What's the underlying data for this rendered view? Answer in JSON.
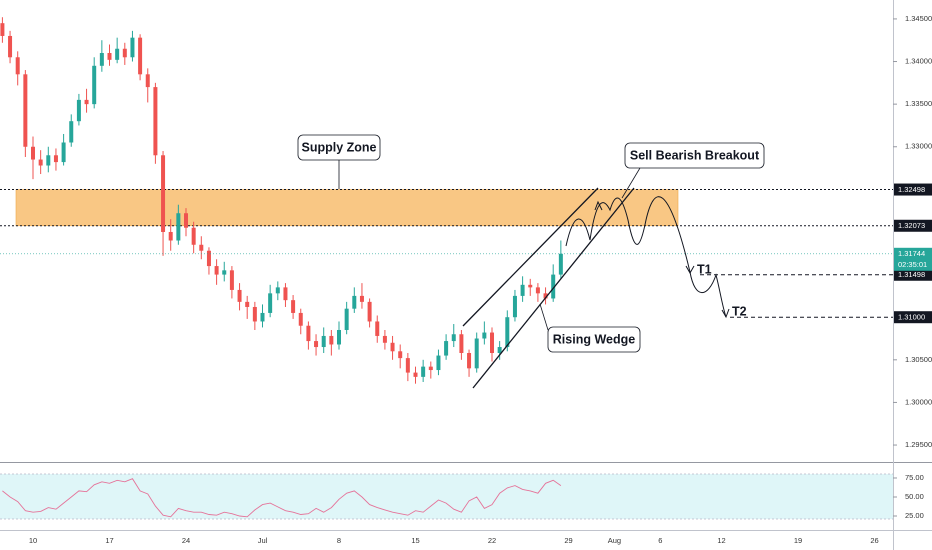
{
  "chart_data": [
    {
      "type": "candlestick",
      "x": [
        -4,
        -3,
        -2,
        -1,
        0,
        1,
        2,
        3,
        4,
        5,
        6,
        7,
        8,
        9,
        10,
        11,
        12,
        13,
        14,
        15,
        16,
        17,
        18,
        19,
        20,
        21,
        22,
        23,
        24,
        25,
        26,
        27,
        28,
        29,
        30,
        31,
        32,
        33,
        34,
        35,
        36,
        37,
        38,
        39,
        40,
        41,
        42,
        43,
        44,
        45,
        46,
        47,
        48,
        49,
        50,
        51,
        52,
        53,
        54,
        55,
        56,
        57,
        58,
        59,
        60,
        61,
        62,
        63,
        64,
        65,
        66,
        67,
        68,
        69
      ],
      "open": [
        1.3445,
        1.343,
        1.3405,
        1.3385,
        1.33,
        1.3285,
        1.3278,
        1.329,
        1.3282,
        1.3305,
        1.333,
        1.3355,
        1.335,
        1.3395,
        1.341,
        1.3402,
        1.3415,
        1.3405,
        1.3428,
        1.3385,
        1.337,
        1.329,
        1.32,
        1.319,
        1.3222,
        1.3205,
        1.3185,
        1.3178,
        1.316,
        1.315,
        1.3155,
        1.3132,
        1.3118,
        1.3112,
        1.3095,
        1.3105,
        1.3128,
        1.3135,
        1.312,
        1.3105,
        1.309,
        1.3072,
        1.3065,
        1.3078,
        1.3068,
        1.3085,
        1.311,
        1.3125,
        1.3118,
        1.3095,
        1.3078,
        1.307,
        1.306,
        1.3052,
        1.3035,
        1.303,
        1.3042,
        1.3038,
        1.3055,
        1.3072,
        1.308,
        1.3058,
        1.304,
        1.3075,
        1.3082,
        1.3058,
        1.3065,
        1.31,
        1.3125,
        1.3138,
        1.3135,
        1.3128,
        1.3122,
        1.315
      ],
      "high": [
        1.3452,
        1.3436,
        1.3412,
        1.339,
        1.3312,
        1.3296,
        1.33,
        1.3298,
        1.3315,
        1.3338,
        1.3362,
        1.3368,
        1.3405,
        1.3425,
        1.342,
        1.3428,
        1.3422,
        1.3436,
        1.3432,
        1.3392,
        1.3375,
        1.3295,
        1.3215,
        1.3232,
        1.3228,
        1.3212,
        1.3195,
        1.3182,
        1.3168,
        1.3165,
        1.316,
        1.314,
        1.3125,
        1.3118,
        1.3115,
        1.3138,
        1.3142,
        1.314,
        1.3126,
        1.311,
        1.3095,
        1.308,
        1.3088,
        1.3085,
        1.3095,
        1.3118,
        1.3135,
        1.314,
        1.3122,
        1.3102,
        1.3085,
        1.3078,
        1.3068,
        1.3058,
        1.3042,
        1.305,
        1.3048,
        1.3062,
        1.308,
        1.3092,
        1.3085,
        1.3062,
        1.3082,
        1.3095,
        1.3088,
        1.3072,
        1.3108,
        1.3132,
        1.3148,
        1.3145,
        1.314,
        1.3135,
        1.3162,
        1.319
      ],
      "low": [
        1.3422,
        1.3398,
        1.3372,
        1.3288,
        1.3262,
        1.3268,
        1.327,
        1.3272,
        1.3278,
        1.33,
        1.3325,
        1.334,
        1.3345,
        1.3388,
        1.3395,
        1.3398,
        1.3396,
        1.34,
        1.3378,
        1.3352,
        1.328,
        1.3172,
        1.3178,
        1.3185,
        1.3195,
        1.3175,
        1.3168,
        1.315,
        1.3138,
        1.3142,
        1.3122,
        1.3108,
        1.3098,
        1.3085,
        1.3088,
        1.31,
        1.312,
        1.3112,
        1.3098,
        1.308,
        1.3062,
        1.3055,
        1.3058,
        1.3055,
        1.3062,
        1.308,
        1.3105,
        1.311,
        1.3088,
        1.307,
        1.3062,
        1.305,
        1.304,
        1.3025,
        1.3022,
        1.3024,
        1.3028,
        1.3032,
        1.305,
        1.3065,
        1.305,
        1.303,
        1.3035,
        1.3068,
        1.3048,
        1.305,
        1.306,
        1.3095,
        1.3118,
        1.3125,
        1.3118,
        1.3115,
        1.3118,
        1.3145
      ],
      "close": [
        1.343,
        1.3405,
        1.3385,
        1.33,
        1.3285,
        1.3278,
        1.329,
        1.3282,
        1.3305,
        1.333,
        1.3355,
        1.335,
        1.3395,
        1.341,
        1.3402,
        1.3415,
        1.3405,
        1.3428,
        1.3385,
        1.337,
        1.329,
        1.32,
        1.319,
        1.3222,
        1.3205,
        1.3185,
        1.3178,
        1.316,
        1.315,
        1.3155,
        1.3132,
        1.3118,
        1.3112,
        1.3095,
        1.3105,
        1.3128,
        1.3135,
        1.312,
        1.3105,
        1.309,
        1.3072,
        1.3065,
        1.3078,
        1.3068,
        1.3085,
        1.311,
        1.3125,
        1.3118,
        1.3095,
        1.3078,
        1.307,
        1.306,
        1.3052,
        1.3035,
        1.303,
        1.3042,
        1.3038,
        1.3055,
        1.3072,
        1.308,
        1.3058,
        1.304,
        1.3075,
        1.3082,
        1.3058,
        1.3065,
        1.31,
        1.3125,
        1.3138,
        1.3135,
        1.3128,
        1.3122,
        1.315,
        1.31744
      ],
      "up_color": "#26a69a",
      "down_color": "#ef5350",
      "zone_color": "#f9c784",
      "xlim": [
        -4.314,
        112.418
      ],
      "xticks": [
        {
          "value": 0,
          "label": "10"
        },
        {
          "value": 10,
          "label": "17"
        },
        {
          "value": 20,
          "label": "24"
        },
        {
          "value": 30,
          "label": "Jul"
        },
        {
          "value": 40,
          "label": "8"
        },
        {
          "value": 50,
          "label": "15"
        },
        {
          "value": 60,
          "label": "22"
        },
        {
          "value": 70,
          "label": "29"
        },
        {
          "value": 76,
          "label": "Aug"
        },
        {
          "value": 82,
          "label": "6"
        },
        {
          "value": 90,
          "label": "12"
        },
        {
          "value": 100,
          "label": "19"
        },
        {
          "value": 110,
          "label": "26"
        }
      ],
      "ylim": [
        1.29301,
        1.34722
      ],
      "yticks": [
        {
          "value": 1.345,
          "label": "1.34500"
        },
        {
          "value": 1.34,
          "label": "1.34000"
        },
        {
          "value": 1.335,
          "label": "1.33500"
        },
        {
          "value": 1.33,
          "label": "1.33000"
        },
        {
          "value": 1.305,
          "label": "1.30500"
        },
        {
          "value": 1.3,
          "label": "1.30000"
        },
        {
          "value": 1.295,
          "label": "1.29500"
        }
      ],
      "levels": [
        1.32498,
        1.32073,
        1.31498,
        {
          "value": 1.31,
          "label": "1.31000"
        }
      ],
      "countdown": "02:35:01",
      "annotations": [
        "Supply Zone",
        "Sell Bearish Breakout",
        "Rising Wedge",
        "T1",
        "T2"
      ]
    },
    {
      "type": "line",
      "x": [
        -4,
        -3,
        -2,
        -1,
        0,
        1,
        2,
        3,
        4,
        5,
        6,
        7,
        8,
        9,
        10,
        11,
        12,
        13,
        14,
        15,
        16,
        17,
        18,
        19,
        20,
        21,
        22,
        23,
        24,
        25,
        26,
        27,
        28,
        29,
        30,
        31,
        32,
        33,
        34,
        35,
        36,
        37,
        38,
        39,
        40,
        41,
        42,
        43,
        44,
        45,
        46,
        47,
        48,
        49,
        50,
        51,
        52,
        53,
        54,
        55,
        56,
        57,
        58,
        59,
        60,
        61,
        62,
        63,
        64,
        65,
        66,
        67,
        68,
        69
      ],
      "values": [
        58,
        50,
        44,
        32,
        30,
        31,
        36,
        34,
        42,
        50,
        58,
        57,
        66,
        70,
        68,
        72,
        70,
        74,
        58,
        54,
        38,
        26,
        24,
        35,
        32,
        30,
        30,
        27,
        26,
        30,
        28,
        25,
        24,
        33,
        40,
        42,
        37,
        32,
        30,
        27,
        28,
        35,
        30,
        36,
        47,
        55,
        58,
        50,
        40,
        36,
        33,
        30,
        28,
        26,
        32,
        30,
        38,
        46,
        42,
        34,
        30,
        45,
        50,
        35,
        40,
        55,
        62,
        65,
        60,
        58,
        55,
        68,
        72,
        65
      ],
      "color": "#e57399",
      "ylim": [
        6.6,
        94.7
      ],
      "yticks": [
        {
          "value": 75,
          "label": "75.00"
        },
        {
          "value": 50,
          "label": "50.00"
        },
        {
          "value": 25,
          "label": "25.00"
        }
      ]
    }
  ]
}
